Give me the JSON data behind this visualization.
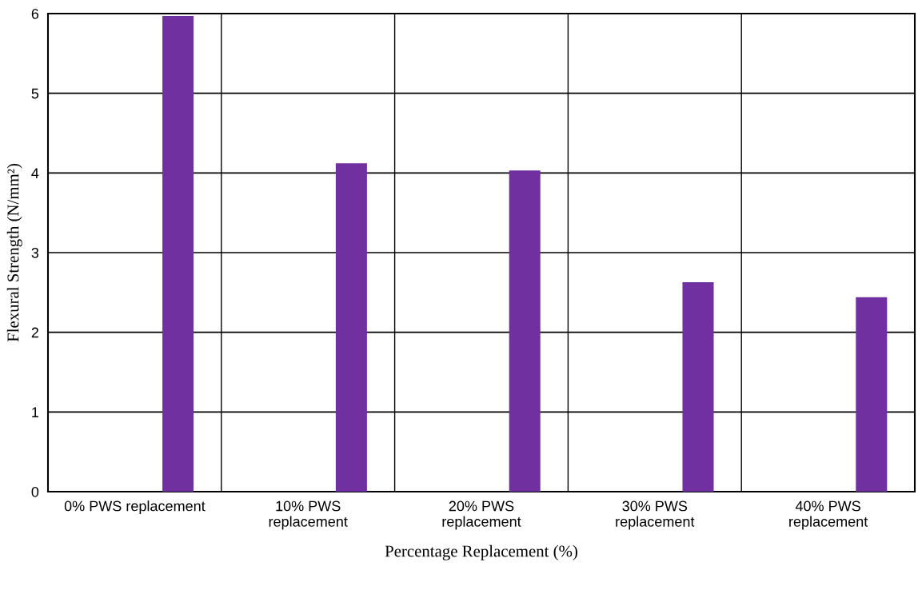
{
  "chart_data": {
    "type": "bar",
    "xlabel": "Percentage Replacement (%)",
    "ylabel": "Flexural Strength (N/mm²)",
    "categories": [
      "0% PWS replacement",
      "10% PWS\nreplacement",
      "20% PWS\nreplacement",
      "30% PWS\nreplacement",
      "40% PWS\nreplacement"
    ],
    "values": [
      5.97,
      4.12,
      4.03,
      2.63,
      2.44
    ],
    "color": "#7030a0",
    "ylim": [
      0,
      6
    ],
    "yticks": [
      0,
      1,
      2,
      3,
      4,
      5,
      6
    ],
    "grid": true
  }
}
